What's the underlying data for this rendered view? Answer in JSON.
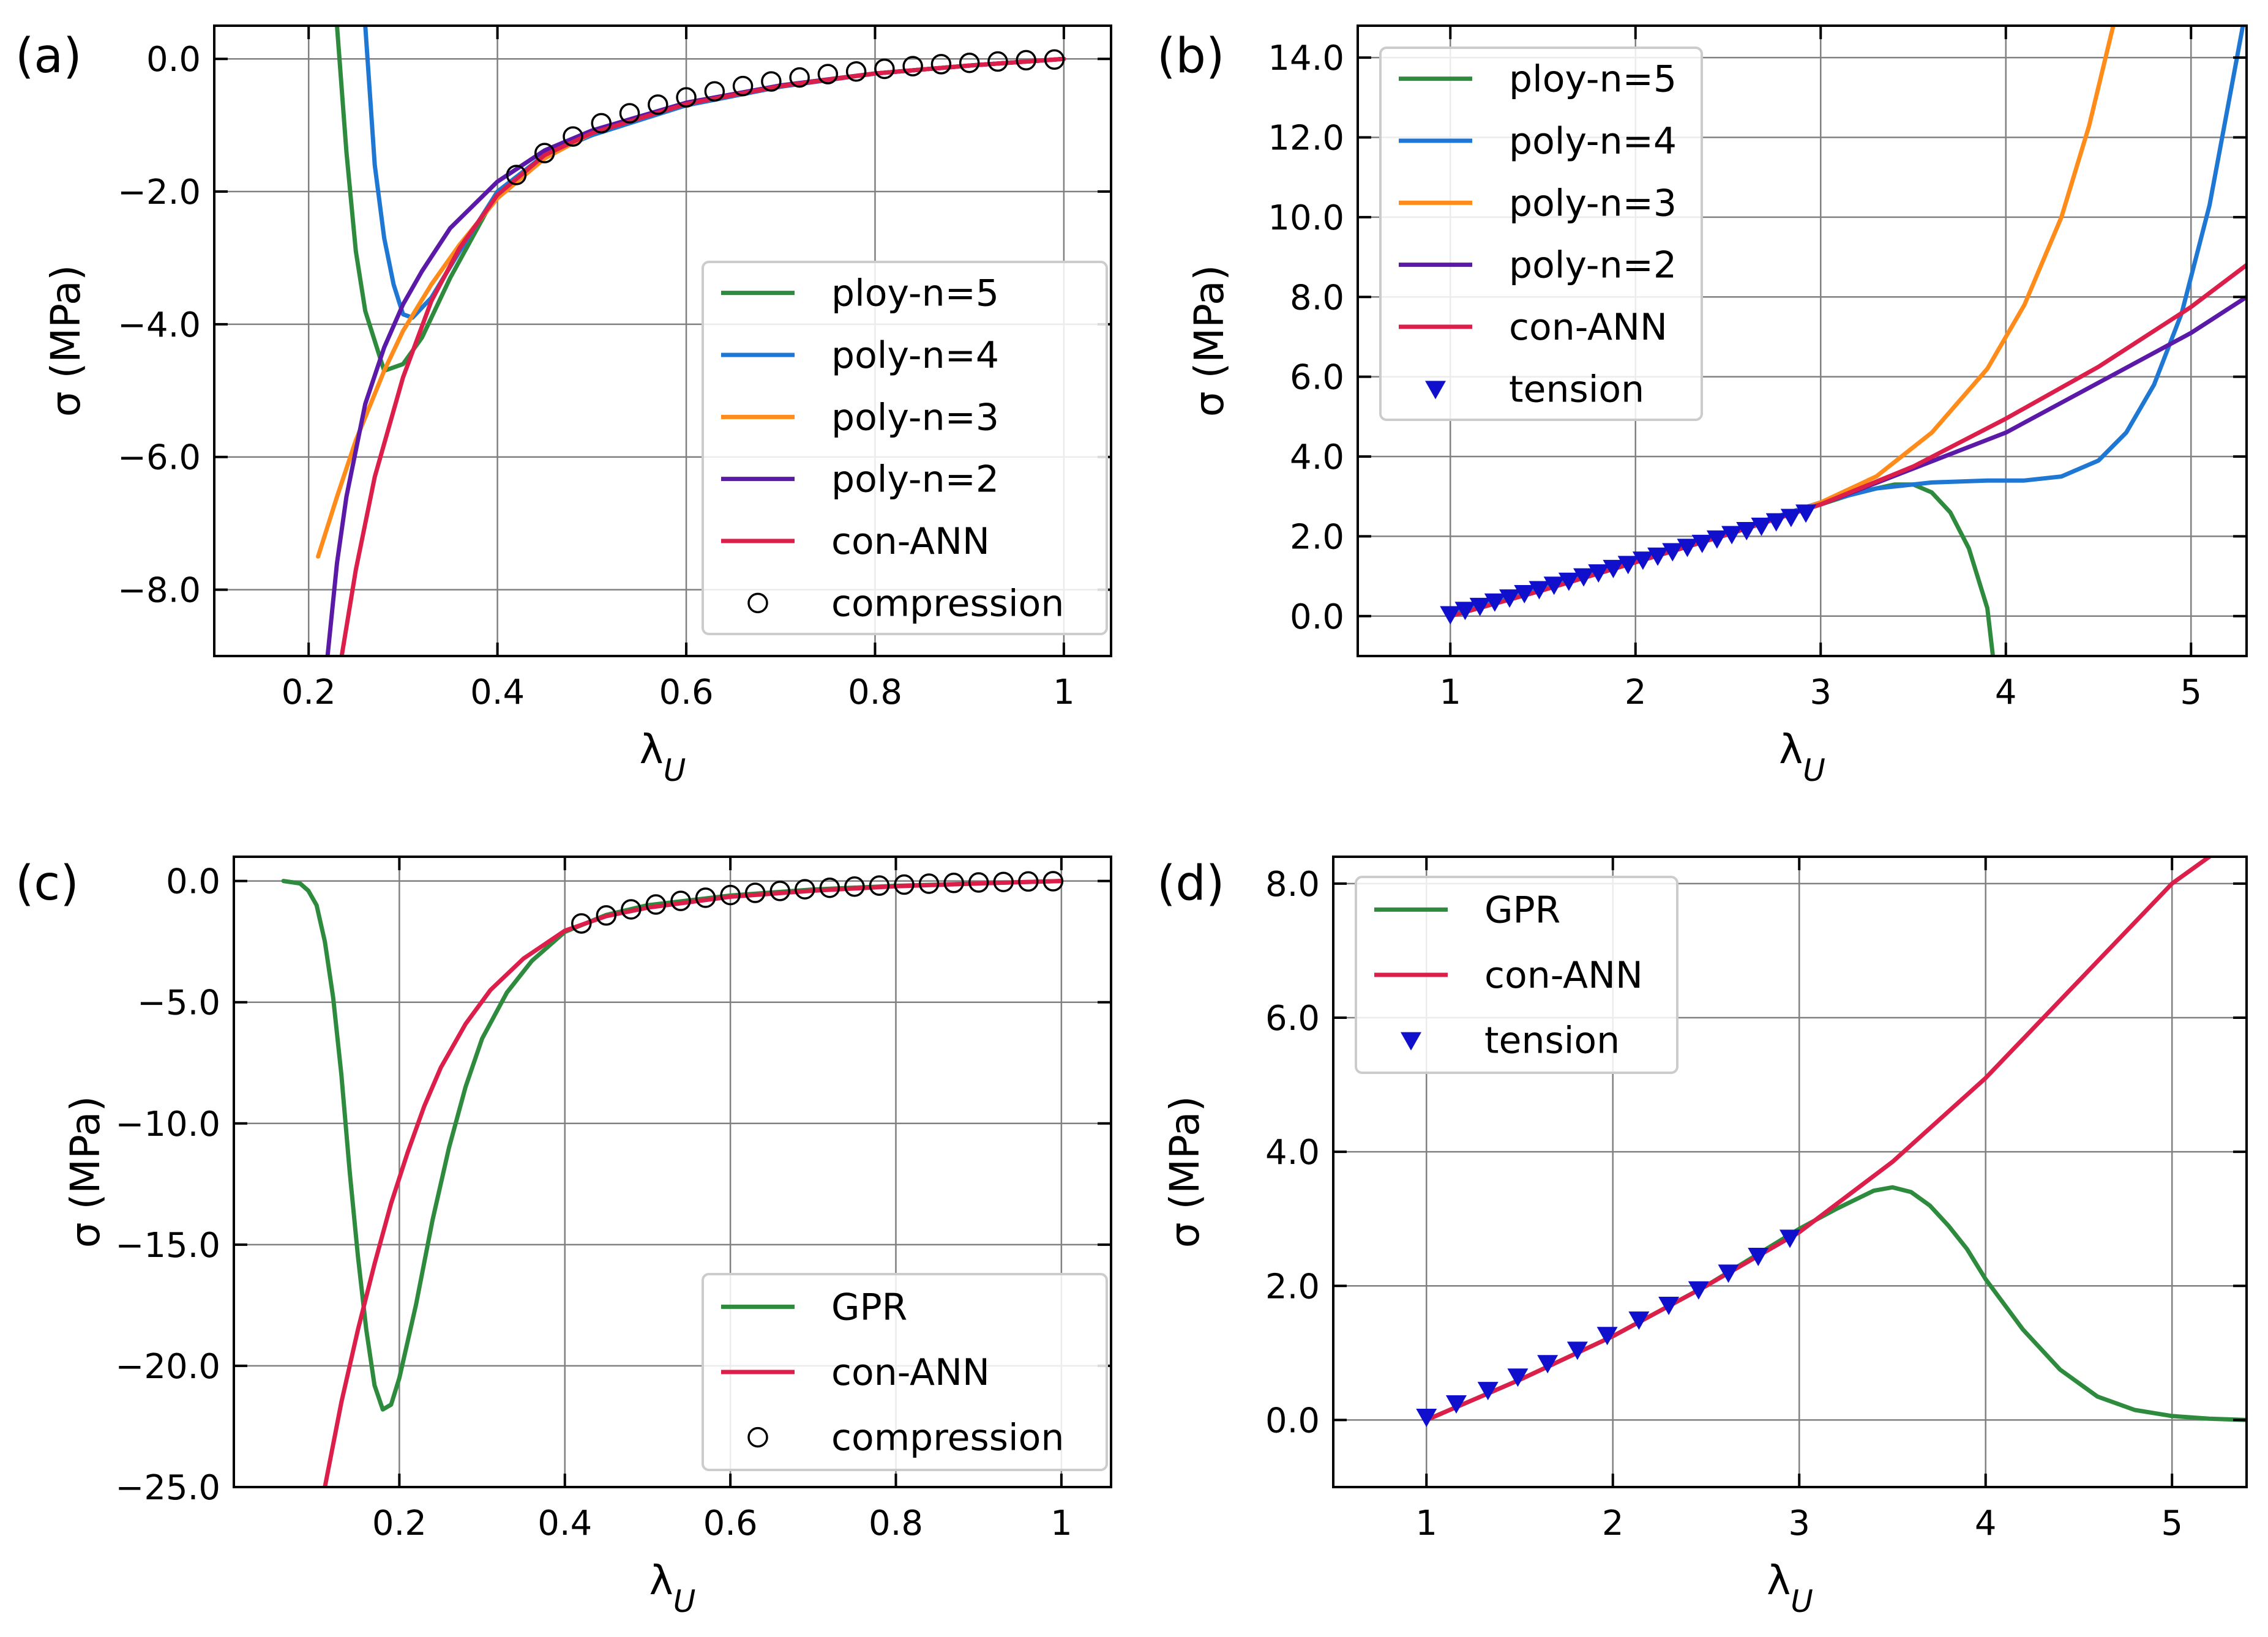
{
  "chart_data": [
    {
      "panel": "(a)",
      "type": "line",
      "xlabel": "λ",
      "xlabel_sub": "U",
      "ylabel": "σ (MPa)",
      "xlim": [
        0.1,
        1.05
      ],
      "ylim": [
        -9.0,
        0.5
      ],
      "xticks": [
        0.2,
        0.4,
        0.6,
        0.8,
        1.0
      ],
      "xtick_labels": [
        "0.2",
        "0.4",
        "0.6",
        "0.8",
        "1"
      ],
      "yticks": [
        0.0,
        -2.0,
        -4.0,
        -6.0,
        -8.0
      ],
      "ytick_labels": [
        "0.0",
        "−2.0",
        "−4.0",
        "−6.0",
        "−8.0"
      ],
      "grid": true,
      "legend_position": "lower-right",
      "series": [
        {
          "name": "ploy-n=5",
          "color": "#2e8b3e",
          "x": [
            0.23,
            0.24,
            0.25,
            0.26,
            0.28,
            0.3,
            0.32,
            0.35,
            0.4,
            0.45,
            0.5,
            0.6,
            0.7,
            0.8,
            0.9,
            1.0
          ],
          "y": [
            0.5,
            -1.4,
            -2.9,
            -3.8,
            -4.7,
            -4.6,
            -4.2,
            -3.3,
            -2.0,
            -1.45,
            -1.15,
            -0.68,
            -0.4,
            -0.22,
            -0.1,
            0.0
          ]
        },
        {
          "name": "poly-n=4",
          "color": "#1f77d4",
          "x": [
            0.26,
            0.27,
            0.28,
            0.29,
            0.3,
            0.31,
            0.33,
            0.36,
            0.4,
            0.45,
            0.5,
            0.6,
            0.7,
            0.8,
            0.9,
            1.0
          ],
          "y": [
            0.5,
            -1.6,
            -2.7,
            -3.4,
            -3.85,
            -3.9,
            -3.6,
            -2.9,
            -2.0,
            -1.45,
            -1.15,
            -0.7,
            -0.42,
            -0.22,
            -0.1,
            0.0
          ]
        },
        {
          "name": "poly-n=3",
          "color": "#ff8c1a",
          "x": [
            0.21,
            0.23,
            0.25,
            0.28,
            0.3,
            0.33,
            0.36,
            0.4,
            0.45,
            0.5,
            0.6,
            0.7,
            0.8,
            0.9,
            1.0
          ],
          "y": [
            -7.5,
            -6.6,
            -5.75,
            -4.7,
            -4.1,
            -3.4,
            -2.8,
            -2.1,
            -1.5,
            -1.12,
            -0.66,
            -0.4,
            -0.22,
            -0.1,
            0.0
          ]
        },
        {
          "name": "poly-n=2",
          "color": "#5b19a8",
          "x": [
            0.22,
            0.23,
            0.24,
            0.26,
            0.28,
            0.3,
            0.32,
            0.35,
            0.4,
            0.45,
            0.5,
            0.6,
            0.7,
            0.8,
            0.9,
            1.0
          ],
          "y": [
            -9.0,
            -7.6,
            -6.6,
            -5.2,
            -4.35,
            -3.7,
            -3.2,
            -2.55,
            -1.85,
            -1.38,
            -1.08,
            -0.66,
            -0.4,
            -0.22,
            -0.1,
            0.0
          ]
        },
        {
          "name": "con-ANN",
          "color": "#dc1e4a",
          "x": [
            0.235,
            0.25,
            0.27,
            0.3,
            0.33,
            0.36,
            0.4,
            0.45,
            0.5,
            0.6,
            0.7,
            0.8,
            0.9,
            1.0
          ],
          "y": [
            -9.0,
            -7.7,
            -6.3,
            -4.8,
            -3.65,
            -2.85,
            -2.05,
            -1.45,
            -1.12,
            -0.68,
            -0.41,
            -0.22,
            -0.1,
            0.0
          ]
        },
        {
          "name": "compression",
          "marker": "circle",
          "x": [
            0.42,
            0.45,
            0.48,
            0.51,
            0.54,
            0.57,
            0.6,
            0.63,
            0.66,
            0.69,
            0.72,
            0.75,
            0.78,
            0.81,
            0.84,
            0.87,
            0.9,
            0.93,
            0.96,
            0.99
          ],
          "y": [
            -1.75,
            -1.42,
            -1.17,
            -0.97,
            -0.82,
            -0.69,
            -0.58,
            -0.49,
            -0.41,
            -0.34,
            -0.28,
            -0.23,
            -0.19,
            -0.15,
            -0.11,
            -0.08,
            -0.06,
            -0.04,
            -0.02,
            -0.01
          ]
        }
      ]
    },
    {
      "panel": "(b)",
      "type": "line",
      "xlabel": "λ",
      "xlabel_sub": "U",
      "ylabel": "σ (MPa)",
      "xlim": [
        0.5,
        5.3
      ],
      "ylim": [
        -1.0,
        14.8
      ],
      "xticks": [
        1,
        2,
        3,
        4,
        5
      ],
      "xtick_labels": [
        "1",
        "2",
        "3",
        "4",
        "5"
      ],
      "yticks": [
        0,
        2,
        4,
        6,
        8,
        10,
        12,
        14
      ],
      "ytick_labels": [
        "0.0",
        "2.0",
        "4.0",
        "6.0",
        "8.0",
        "10.0",
        "12.0",
        "14.0"
      ],
      "grid": true,
      "legend_position": "top-left",
      "series": [
        {
          "name": "ploy-n=5",
          "color": "#2e8b3e",
          "x": [
            1.0,
            1.5,
            2.0,
            2.5,
            3.0,
            3.2,
            3.4,
            3.5,
            3.6,
            3.7,
            3.8,
            3.9,
            3.93
          ],
          "y": [
            0.0,
            0.65,
            1.35,
            2.05,
            2.8,
            3.1,
            3.3,
            3.3,
            3.1,
            2.6,
            1.7,
            0.2,
            -1.0
          ]
        },
        {
          "name": "poly-n=4",
          "color": "#1f77d4",
          "x": [
            1.0,
            1.5,
            2.0,
            2.5,
            3.0,
            3.3,
            3.6,
            3.9,
            4.1,
            4.3,
            4.5,
            4.65,
            4.8,
            4.95,
            5.1,
            5.2,
            5.28
          ],
          "y": [
            0.05,
            0.7,
            1.4,
            2.1,
            2.85,
            3.2,
            3.35,
            3.4,
            3.4,
            3.5,
            3.9,
            4.6,
            5.8,
            7.6,
            10.3,
            12.8,
            14.8
          ]
        },
        {
          "name": "poly-n=3",
          "color": "#ff8c1a",
          "x": [
            1.0,
            1.5,
            2.0,
            2.5,
            3.0,
            3.3,
            3.6,
            3.9,
            4.1,
            4.3,
            4.45,
            4.58
          ],
          "y": [
            0.0,
            0.65,
            1.35,
            2.05,
            2.85,
            3.5,
            4.6,
            6.2,
            7.8,
            10.0,
            12.3,
            14.8
          ]
        },
        {
          "name": "poly-n=2",
          "color": "#5b19a8",
          "x": [
            1.0,
            2.0,
            3.0,
            4.0,
            5.0,
            5.3
          ],
          "y": [
            0.15,
            1.45,
            2.8,
            4.6,
            7.1,
            8.0
          ]
        },
        {
          "name": "con-ANN",
          "color": "#dc1e4a",
          "x": [
            1.0,
            1.5,
            2.0,
            2.5,
            3.0,
            3.5,
            4.0,
            4.5,
            5.0,
            5.3
          ],
          "y": [
            0.0,
            0.65,
            1.35,
            2.05,
            2.8,
            3.75,
            4.95,
            6.25,
            7.75,
            8.8
          ]
        },
        {
          "name": "tension",
          "marker": "triangle-down",
          "x": [
            1.0,
            1.08,
            1.16,
            1.24,
            1.32,
            1.4,
            1.48,
            1.56,
            1.64,
            1.72,
            1.8,
            1.88,
            1.96,
            2.04,
            2.12,
            2.2,
            2.28,
            2.36,
            2.44,
            2.52,
            2.6,
            2.68,
            2.76,
            2.84,
            2.92
          ],
          "y": [
            0.05,
            0.16,
            0.26,
            0.37,
            0.47,
            0.58,
            0.68,
            0.79,
            0.89,
            1.0,
            1.1,
            1.21,
            1.31,
            1.42,
            1.52,
            1.63,
            1.74,
            1.84,
            1.95,
            2.06,
            2.16,
            2.27,
            2.38,
            2.49,
            2.6
          ]
        }
      ]
    },
    {
      "panel": "(c)",
      "type": "line",
      "xlabel": "λ",
      "xlabel_sub": "U",
      "ylabel": "σ (MPa)",
      "xlim": [
        0.0,
        1.06
      ],
      "ylim": [
        -25.0,
        1.0
      ],
      "xticks": [
        0.2,
        0.4,
        0.6,
        0.8,
        1.0
      ],
      "xtick_labels": [
        "0.2",
        "0.4",
        "0.6",
        "0.8",
        "1"
      ],
      "yticks": [
        0,
        -5,
        -10,
        -15,
        -20,
        -25
      ],
      "ytick_labels": [
        "0.0",
        "−5.0",
        "−10.0",
        "−15.0",
        "−20.0",
        "−25.0"
      ],
      "grid": true,
      "legend_position": "lower-right",
      "series": [
        {
          "name": "GPR",
          "color": "#2e8b3e",
          "x": [
            0.06,
            0.08,
            0.09,
            0.1,
            0.11,
            0.12,
            0.13,
            0.14,
            0.15,
            0.16,
            0.17,
            0.18,
            0.19,
            0.2,
            0.22,
            0.24,
            0.26,
            0.28,
            0.3,
            0.33,
            0.36,
            0.4,
            0.45,
            0.5,
            0.6,
            0.7,
            0.8,
            0.9,
            1.0
          ],
          "y": [
            0.0,
            -0.1,
            -0.4,
            -1.0,
            -2.5,
            -4.8,
            -8.0,
            -12.0,
            -15.5,
            -18.5,
            -20.8,
            -21.8,
            -21.6,
            -20.5,
            -17.5,
            -14.0,
            -11.0,
            -8.5,
            -6.5,
            -4.6,
            -3.3,
            -2.1,
            -1.4,
            -1.0,
            -0.6,
            -0.35,
            -0.2,
            -0.1,
            0.0
          ]
        },
        {
          "name": "con-ANN",
          "color": "#dc1e4a",
          "x": [
            0.11,
            0.13,
            0.15,
            0.17,
            0.19,
            0.21,
            0.23,
            0.25,
            0.28,
            0.31,
            0.35,
            0.4,
            0.45,
            0.5,
            0.6,
            0.7,
            0.8,
            0.9,
            1.0
          ],
          "y": [
            -25.0,
            -21.5,
            -18.5,
            -15.8,
            -13.3,
            -11.2,
            -9.3,
            -7.7,
            -5.9,
            -4.5,
            -3.2,
            -2.05,
            -1.45,
            -1.1,
            -0.65,
            -0.4,
            -0.22,
            -0.1,
            0.0
          ]
        },
        {
          "name": "compression",
          "marker": "circle",
          "x": [
            0.42,
            0.45,
            0.48,
            0.51,
            0.54,
            0.57,
            0.6,
            0.63,
            0.66,
            0.69,
            0.72,
            0.75,
            0.78,
            0.81,
            0.84,
            0.87,
            0.9,
            0.93,
            0.96,
            0.99
          ],
          "y": [
            -1.75,
            -1.42,
            -1.17,
            -0.97,
            -0.82,
            -0.69,
            -0.58,
            -0.49,
            -0.41,
            -0.34,
            -0.28,
            -0.23,
            -0.19,
            -0.15,
            -0.11,
            -0.08,
            -0.06,
            -0.04,
            -0.02,
            -0.01
          ]
        }
      ]
    },
    {
      "panel": "(d)",
      "type": "line",
      "xlabel": "λ",
      "xlabel_sub": "U",
      "ylabel": "σ (MPa)",
      "xlim": [
        0.5,
        5.4
      ],
      "ylim": [
        -1.0,
        8.4
      ],
      "xticks": [
        1,
        2,
        3,
        4,
        5
      ],
      "xtick_labels": [
        "1",
        "2",
        "3",
        "4",
        "5"
      ],
      "yticks": [
        0,
        2,
        4,
        6,
        8
      ],
      "ytick_labels": [
        "0.0",
        "2.0",
        "4.0",
        "6.0",
        "8.0"
      ],
      "grid": true,
      "legend_position": "top-left",
      "series": [
        {
          "name": "GPR",
          "color": "#2e8b3e",
          "x": [
            1.0,
            1.5,
            2.0,
            2.5,
            3.0,
            3.2,
            3.4,
            3.5,
            3.6,
            3.7,
            3.8,
            3.9,
            4.0,
            4.2,
            4.4,
            4.6,
            4.8,
            5.0,
            5.2,
            5.4
          ],
          "y": [
            0.0,
            0.6,
            1.25,
            2.0,
            2.85,
            3.15,
            3.42,
            3.47,
            3.4,
            3.2,
            2.9,
            2.55,
            2.1,
            1.35,
            0.75,
            0.35,
            0.15,
            0.06,
            0.02,
            0.0
          ]
        },
        {
          "name": "con-ANN",
          "color": "#dc1e4a",
          "x": [
            1.0,
            1.5,
            2.0,
            2.5,
            3.0,
            3.5,
            4.0,
            4.5,
            5.0,
            5.2
          ],
          "y": [
            0.0,
            0.6,
            1.25,
            2.0,
            2.8,
            3.85,
            5.1,
            6.55,
            8.0,
            8.4
          ]
        },
        {
          "name": "tension",
          "marker": "triangle-down",
          "x": [
            1.0,
            1.16,
            1.33,
            1.49,
            1.65,
            1.81,
            1.97,
            2.14,
            2.3,
            2.46,
            2.62,
            2.78,
            2.95
          ],
          "y": [
            0.05,
            0.25,
            0.45,
            0.65,
            0.85,
            1.05,
            1.27,
            1.5,
            1.72,
            1.95,
            2.2,
            2.45,
            2.72
          ]
        }
      ]
    }
  ]
}
